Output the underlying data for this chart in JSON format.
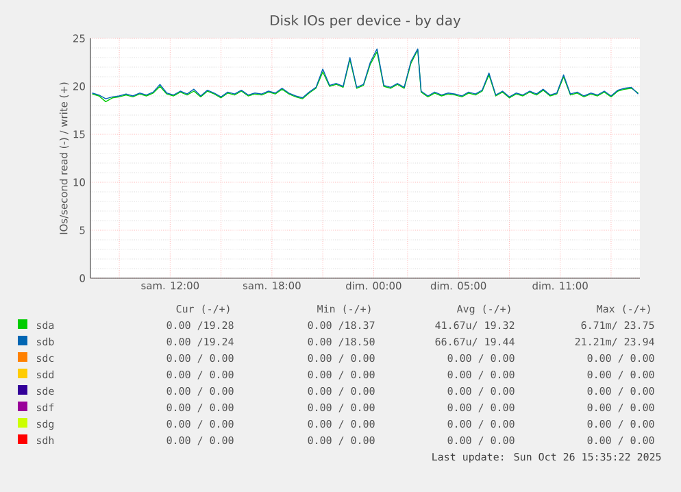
{
  "chart_data": {
    "type": "line",
    "title": "Disk IOs per device - by day",
    "ylabel": "IOs/second read (-) / write (+)",
    "x": [
      "2025-10-25T07:24",
      "2025-10-25T07:48",
      "2025-10-25T08:12",
      "2025-10-25T08:36",
      "2025-10-25T09:00",
      "2025-10-25T09:24",
      "2025-10-25T09:48",
      "2025-10-25T10:12",
      "2025-10-25T10:36",
      "2025-10-25T11:00",
      "2025-10-25T11:24",
      "2025-10-25T11:48",
      "2025-10-25T12:12",
      "2025-10-25T12:36",
      "2025-10-25T13:00",
      "2025-10-25T13:24",
      "2025-10-25T13:48",
      "2025-10-25T14:12",
      "2025-10-25T14:36",
      "2025-10-25T15:00",
      "2025-10-25T15:24",
      "2025-10-25T15:48",
      "2025-10-25T16:12",
      "2025-10-25T16:36",
      "2025-10-25T17:00",
      "2025-10-25T17:24",
      "2025-10-25T17:48",
      "2025-10-25T18:12",
      "2025-10-25T18:36",
      "2025-10-25T19:00",
      "2025-10-25T19:24",
      "2025-10-25T19:48",
      "2025-10-25T20:12",
      "2025-10-25T20:36",
      "2025-10-25T21:00",
      "2025-10-25T21:24",
      "2025-10-25T21:48",
      "2025-10-25T22:12",
      "2025-10-25T22:36",
      "2025-10-25T23:00",
      "2025-10-25T23:24",
      "2025-10-25T23:48",
      "2025-10-26T00:12",
      "2025-10-26T00:36",
      "2025-10-26T01:00",
      "2025-10-26T01:24",
      "2025-10-26T01:48",
      "2025-10-26T02:12",
      "2025-10-26T02:36",
      "2025-10-26T02:48",
      "2025-10-26T03:12",
      "2025-10-26T03:36",
      "2025-10-26T04:00",
      "2025-10-26T04:24",
      "2025-10-26T04:48",
      "2025-10-26T05:12",
      "2025-10-26T05:36",
      "2025-10-26T06:00",
      "2025-10-26T06:24",
      "2025-10-26T06:48",
      "2025-10-26T07:12",
      "2025-10-26T07:36",
      "2025-10-26T08:00",
      "2025-10-26T08:24",
      "2025-10-26T08:48",
      "2025-10-26T09:12",
      "2025-10-26T09:36",
      "2025-10-26T10:00",
      "2025-10-26T10:24",
      "2025-10-26T10:48",
      "2025-10-26T11:12",
      "2025-10-26T11:36",
      "2025-10-26T12:00",
      "2025-10-26T12:24",
      "2025-10-26T12:48",
      "2025-10-26T13:12",
      "2025-10-26T13:36",
      "2025-10-26T14:00",
      "2025-10-26T14:24",
      "2025-10-26T14:48",
      "2025-10-26T15:12",
      "2025-10-26T15:36"
    ],
    "series": [
      {
        "name": "sda",
        "color": "#00cc00",
        "values": [
          19.2,
          19.0,
          18.4,
          18.8,
          18.9,
          19.1,
          18.9,
          19.2,
          19.0,
          19.3,
          20.0,
          19.2,
          19.0,
          19.4,
          19.1,
          19.5,
          18.9,
          19.5,
          19.2,
          18.8,
          19.3,
          19.1,
          19.5,
          19.0,
          19.2,
          19.1,
          19.4,
          19.2,
          19.7,
          19.2,
          18.9,
          18.7,
          19.3,
          19.8,
          21.5,
          20.0,
          20.2,
          19.9,
          22.8,
          19.8,
          20.1,
          22.3,
          23.6,
          20.0,
          19.8,
          20.2,
          19.8,
          22.4,
          23.8,
          19.4,
          18.9,
          19.3,
          19.0,
          19.2,
          19.1,
          18.9,
          19.3,
          19.1,
          19.5,
          21.2,
          19.0,
          19.4,
          18.8,
          19.2,
          19.0,
          19.4,
          19.1,
          19.6,
          19.0,
          19.2,
          21.0,
          19.1,
          19.3,
          18.9,
          19.2,
          19.0,
          19.4,
          18.9,
          19.5,
          19.7,
          19.8,
          19.3
        ]
      },
      {
        "name": "sdb",
        "color": "#0066b3",
        "values": [
          19.3,
          19.1,
          18.7,
          18.9,
          19.0,
          19.2,
          19.0,
          19.3,
          19.1,
          19.4,
          20.2,
          19.3,
          19.1,
          19.5,
          19.2,
          19.7,
          19.0,
          19.6,
          19.3,
          18.9,
          19.4,
          19.2,
          19.6,
          19.1,
          19.3,
          19.2,
          19.5,
          19.3,
          19.8,
          19.3,
          19.0,
          18.8,
          19.4,
          19.9,
          21.8,
          20.1,
          20.3,
          20.0,
          23.0,
          19.9,
          20.2,
          22.5,
          23.9,
          20.1,
          19.9,
          20.3,
          19.9,
          22.6,
          23.9,
          19.5,
          19.0,
          19.4,
          19.1,
          19.3,
          19.2,
          19.0,
          19.4,
          19.2,
          19.6,
          21.4,
          19.1,
          19.5,
          18.9,
          19.3,
          19.1,
          19.5,
          19.2,
          19.7,
          19.1,
          19.3,
          21.2,
          19.2,
          19.4,
          19.0,
          19.3,
          19.1,
          19.5,
          19.0,
          19.6,
          19.8,
          19.9,
          19.2
        ]
      },
      {
        "name": "sdc",
        "color": "#ff8000",
        "values": [
          null,
          null,
          null,
          null,
          null,
          null,
          null,
          null,
          null,
          null,
          null,
          null,
          null,
          null,
          null,
          null,
          null,
          null,
          null,
          null,
          null,
          null,
          null,
          null,
          null,
          null,
          null,
          null,
          null,
          null,
          null,
          null,
          null,
          null,
          null,
          null,
          null,
          null,
          null,
          null,
          null,
          null,
          null,
          null,
          null,
          null,
          null,
          null,
          null,
          null,
          null,
          null,
          null,
          null,
          null,
          null,
          null,
          null,
          null,
          null,
          null,
          null,
          null,
          null,
          null,
          null,
          null,
          null,
          null,
          null,
          null,
          null,
          null,
          null,
          null,
          null,
          null,
          null,
          null,
          null,
          null,
          null
        ]
      },
      {
        "name": "sdd",
        "color": "#ffcc00",
        "values": [
          null,
          null,
          null,
          null,
          null,
          null,
          null,
          null,
          null,
          null,
          null,
          null,
          null,
          null,
          null,
          null,
          null,
          null,
          null,
          null,
          null,
          null,
          null,
          null,
          null,
          null,
          null,
          null,
          null,
          null,
          null,
          null,
          null,
          null,
          null,
          null,
          null,
          null,
          null,
          null,
          null,
          null,
          null,
          null,
          null,
          null,
          null,
          null,
          null,
          null,
          null,
          null,
          null,
          null,
          null,
          null,
          null,
          null,
          null,
          null,
          null,
          null,
          null,
          null,
          null,
          null,
          null,
          null,
          null,
          null,
          null,
          null,
          null,
          null,
          null,
          null,
          null,
          null,
          null,
          null,
          null,
          null
        ]
      },
      {
        "name": "sde",
        "color": "#330099",
        "values": [
          null,
          null,
          null,
          null,
          null,
          null,
          null,
          null,
          null,
          null,
          null,
          null,
          null,
          null,
          null,
          null,
          null,
          null,
          null,
          null,
          null,
          null,
          null,
          null,
          null,
          null,
          null,
          null,
          null,
          null,
          null,
          null,
          null,
          null,
          null,
          null,
          null,
          null,
          null,
          null,
          null,
          null,
          null,
          null,
          null,
          null,
          null,
          null,
          null,
          null,
          null,
          null,
          null,
          null,
          null,
          null,
          null,
          null,
          null,
          null,
          null,
          null,
          null,
          null,
          null,
          null,
          null,
          null,
          null,
          null,
          null,
          null,
          null,
          null,
          null,
          null,
          null,
          null,
          null,
          null,
          null,
          null
        ]
      },
      {
        "name": "sdf",
        "color": "#990099",
        "values": [
          null,
          null,
          null,
          null,
          null,
          null,
          null,
          null,
          null,
          null,
          null,
          null,
          null,
          null,
          null,
          null,
          null,
          null,
          null,
          null,
          null,
          null,
          null,
          null,
          null,
          null,
          null,
          null,
          null,
          null,
          null,
          null,
          null,
          null,
          null,
          null,
          null,
          null,
          null,
          null,
          null,
          null,
          null,
          null,
          null,
          null,
          null,
          null,
          null,
          null,
          null,
          null,
          null,
          null,
          null,
          null,
          null,
          null,
          null,
          null,
          null,
          null,
          null,
          null,
          null,
          null,
          null,
          null,
          null,
          null,
          null,
          null,
          null,
          null,
          null,
          null,
          null,
          null,
          null,
          null,
          null,
          null
        ]
      },
      {
        "name": "sdg",
        "color": "#ccff00",
        "values": [
          null,
          null,
          null,
          null,
          null,
          null,
          null,
          null,
          null,
          null,
          null,
          null,
          null,
          null,
          null,
          null,
          null,
          null,
          null,
          null,
          null,
          null,
          null,
          null,
          null,
          null,
          null,
          null,
          null,
          null,
          null,
          null,
          null,
          null,
          null,
          null,
          null,
          null,
          null,
          null,
          null,
          null,
          null,
          null,
          null,
          null,
          null,
          null,
          null,
          null,
          null,
          null,
          null,
          null,
          null,
          null,
          null,
          null,
          null,
          null,
          null,
          null,
          null,
          null,
          null,
          null,
          null,
          null,
          null,
          null,
          null,
          null,
          null,
          null,
          null,
          null,
          null,
          null,
          null,
          null,
          null,
          null
        ]
      },
      {
        "name": "sdh",
        "color": "#ff0000",
        "values": [
          null,
          null,
          null,
          null,
          null,
          null,
          null,
          null,
          null,
          null,
          null,
          null,
          null,
          null,
          null,
          null,
          null,
          null,
          null,
          null,
          null,
          null,
          null,
          null,
          null,
          null,
          null,
          null,
          null,
          null,
          null,
          null,
          null,
          null,
          null,
          null,
          null,
          null,
          null,
          null,
          null,
          null,
          null,
          null,
          null,
          null,
          null,
          null,
          null,
          null,
          null,
          null,
          null,
          null,
          null,
          null,
          null,
          null,
          null,
          null,
          null,
          null,
          null,
          null,
          null,
          null,
          null,
          null,
          null,
          null,
          null,
          null,
          null,
          null,
          null,
          null,
          null,
          null,
          null,
          null,
          null,
          null
        ]
      }
    ],
    "xlim": [
      "2025-10-25T07:18",
      "2025-10-26T15:42"
    ],
    "ylim": [
      0,
      25
    ],
    "xticks": [
      {
        "value": "2025-10-25T09:00",
        "label": null
      },
      {
        "value": "2025-10-25T12:00",
        "label": "sam. 12:00"
      },
      {
        "value": "2025-10-25T15:00",
        "label": null
      },
      {
        "value": "2025-10-25T18:00",
        "label": "sam. 18:00"
      },
      {
        "value": "2025-10-25T21:00",
        "label": null
      },
      {
        "value": "2025-10-26T00:00",
        "label": "dim. 00:00"
      },
      {
        "value": "2025-10-26T02:00",
        "label": null
      },
      {
        "value": "2025-10-26T05:00",
        "label": "dim. 05:00"
      },
      {
        "value": "2025-10-26T08:00",
        "label": null
      },
      {
        "value": "2025-10-26T11:00",
        "label": "dim. 11:00"
      },
      {
        "value": "2025-10-26T14:00",
        "label": null
      }
    ],
    "yticks": [
      0,
      5,
      10,
      15,
      20,
      25
    ],
    "grid": true,
    "legend": "bottom",
    "annotations": [
      "Cur (-/+)",
      "Min (-/+)",
      "Avg (-/+)",
      "Max (-/+)",
      "0.00 /19.28",
      "0.00 /18.37",
      "41.67u/ 19.32",
      "6.71m/ 23.75",
      "0.00 /19.24",
      "0.00 /18.50",
      "66.67u/ 19.44",
      "21.21m/ 23.94",
      "0.00 / 0.00",
      "0.00 / 0.00",
      "0.00 / 0.00",
      "0.00 / 0.00",
      "0.00 / 0.00",
      "0.00 / 0.00",
      "0.00 / 0.00",
      "0.00 / 0.00",
      "0.00 / 0.00",
      "0.00 / 0.00",
      "0.00 / 0.00",
      "0.00 / 0.00",
      "0.00 / 0.00",
      "0.00 / 0.00",
      "0.00 / 0.00",
      "0.00 / 0.00",
      "0.00 / 0.00",
      "0.00 / 0.00",
      "0.00 / 0.00",
      "0.00 / 0.00",
      "0.00 / 0.00",
      "0.00 / 0.00",
      "0.00 / 0.00",
      "0.00 / 0.00",
      "Last update: Sun Oct 26 15:35:22 2025"
    ]
  }
}
